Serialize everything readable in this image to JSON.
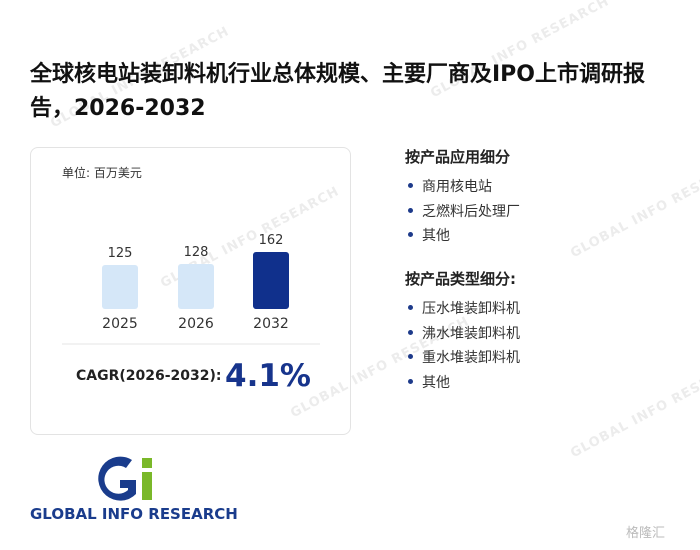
{
  "header": {
    "title": "全球核电站装卸料机行业总体规模、主要厂商及IPO上市调研报告，2026-2032"
  },
  "chart": {
    "type": "bar",
    "unit": "单位: 百万美元",
    "categories": [
      "2025",
      "2026",
      "2032"
    ],
    "values": [
      125,
      128,
      162
    ],
    "colors": [
      "#d5e7f8",
      "#d5e7f8",
      "#10308c"
    ]
  },
  "cagr": {
    "label": "CAGR(2026-2032):",
    "value": "4.1%"
  },
  "segments": [
    {
      "heading": "按产品应用细分",
      "items": [
        "商用核电站",
        "乏燃料后处理厂",
        "其他"
      ]
    },
    {
      "heading": "按产品类型细分:",
      "items": [
        "压水堆装卸料机",
        "沸水堆装卸料机",
        "重水堆装卸料机",
        "其他"
      ]
    }
  ],
  "logo": {
    "text": "GLOBAL INFO RESEARCH"
  },
  "watermark": "GLOBAL INFO RESEARCH",
  "source_mark": "格隆汇"
}
